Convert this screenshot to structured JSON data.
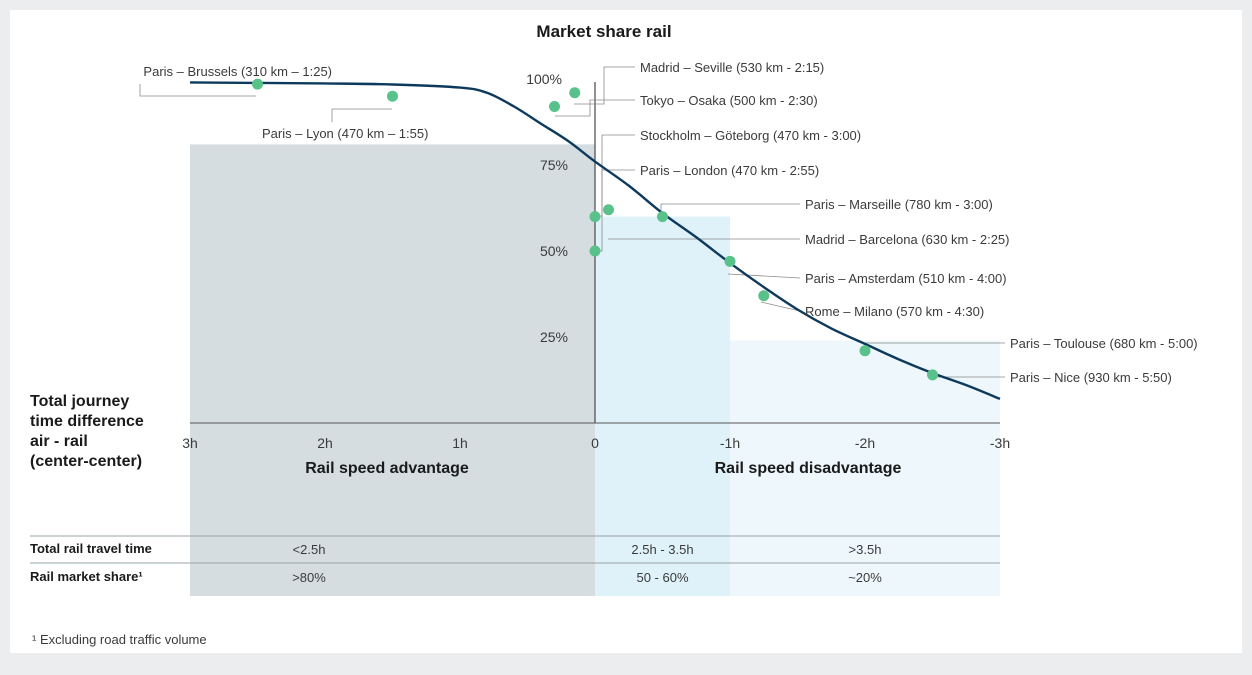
{
  "chart_data": {
    "type": "line",
    "title": "Market share rail",
    "x_axis": {
      "title_lines": [
        "Total journey",
        "time difference",
        "air - rail",
        "(center-center)"
      ],
      "range": [
        3,
        -3
      ],
      "ticks": [
        {
          "value": 3,
          "label": "3h"
        },
        {
          "value": 2,
          "label": "2h"
        },
        {
          "value": 1,
          "label": "1h"
        },
        {
          "value": 0,
          "label": "0"
        },
        {
          "value": -1,
          "label": "-1h"
        },
        {
          "value": -2,
          "label": "-2h"
        },
        {
          "value": -3,
          "label": "-3h"
        }
      ],
      "left_caption": "Rail speed advantage",
      "right_caption": "Rail speed disadvantage"
    },
    "y_axis": {
      "range": [
        0,
        100
      ],
      "ticks": [
        {
          "value": 25,
          "label": "25%"
        },
        {
          "value": 50,
          "label": "50%"
        },
        {
          "value": 75,
          "label": "75%"
        },
        {
          "value": 100,
          "label": "100%"
        }
      ]
    },
    "curve": [
      [
        3,
        99
      ],
      [
        2,
        98.7
      ],
      [
        1.5,
        98.4
      ],
      [
        1,
        97.5
      ],
      [
        0.8,
        96
      ],
      [
        0.6,
        92
      ],
      [
        0.4,
        87
      ],
      [
        0.2,
        82
      ],
      [
        0,
        76
      ],
      [
        -0.25,
        69
      ],
      [
        -0.5,
        61
      ],
      [
        -0.75,
        54
      ],
      [
        -1,
        46.5
      ],
      [
        -1.25,
        39.5
      ],
      [
        -1.5,
        33
      ],
      [
        -1.75,
        27.5
      ],
      [
        -2,
        23
      ],
      [
        -2.25,
        18.5
      ],
      [
        -2.5,
        14.5
      ],
      [
        -2.75,
        11
      ],
      [
        -3,
        7
      ]
    ],
    "points": [
      {
        "label": "Paris – Brussels (310 km – 1:25)",
        "x": 2.5,
        "y": 98.5
      },
      {
        "label": "Paris – Lyon (470 km – 1:55)",
        "x": 1.5,
        "y": 95
      },
      {
        "label": "Madrid – Seville (530 km - 2:15)",
        "x": 0.15,
        "y": 96
      },
      {
        "label": "Tokyo – Osaka (500 km - 2:30)",
        "x": 0.3,
        "y": 92
      },
      {
        "label": "Stockholm – Göteborg (470 km - 3:00)",
        "x": 0,
        "y": 50
      },
      {
        "label": "Paris – London (470 km - 2:55)",
        "x": 0,
        "y": 60
      },
      {
        "label": "Paris – Marseille (780 km - 3:00)",
        "x": -0.5,
        "y": 60
      },
      {
        "label": "Madrid – Barcelona (630 km - 2:25)",
        "x": -0.1,
        "y": 62
      },
      {
        "label": "Paris – Amsterdam (510 km - 4:00)",
        "x": -1,
        "y": 47
      },
      {
        "label": "Rome – Milano (570 km - 4:30)",
        "x": -1.25,
        "y": 37
      },
      {
        "label": "Paris – Toulouse (680 km - 5:00)",
        "x": -2,
        "y": 21
      },
      {
        "label": "Paris – Nice (930 km - 5:50)",
        "x": -2.5,
        "y": 14
      }
    ],
    "bands": [
      {
        "from": 3,
        "to": 0,
        "height": 81,
        "color": "#d5dde1",
        "travel_time": "<2.5h",
        "market_share": ">80%"
      },
      {
        "from": 0,
        "to": -1,
        "height": 60,
        "color": "#dff1f9",
        "travel_time": "2.5h - 3.5h",
        "market_share": "50 - 60%"
      },
      {
        "from": -1,
        "to": -3,
        "height": 24,
        "color": "#eef7fb",
        "travel_time": ">3.5h",
        "market_share": "~20%"
      }
    ],
    "table": {
      "row_labels": [
        "Total rail travel time",
        "Rail market share¹"
      ]
    },
    "footnote": "¹ Excluding road traffic volume",
    "colors": {
      "curve": "#0d3a5c",
      "points": "#59c28a",
      "axis": "#444444"
    }
  }
}
